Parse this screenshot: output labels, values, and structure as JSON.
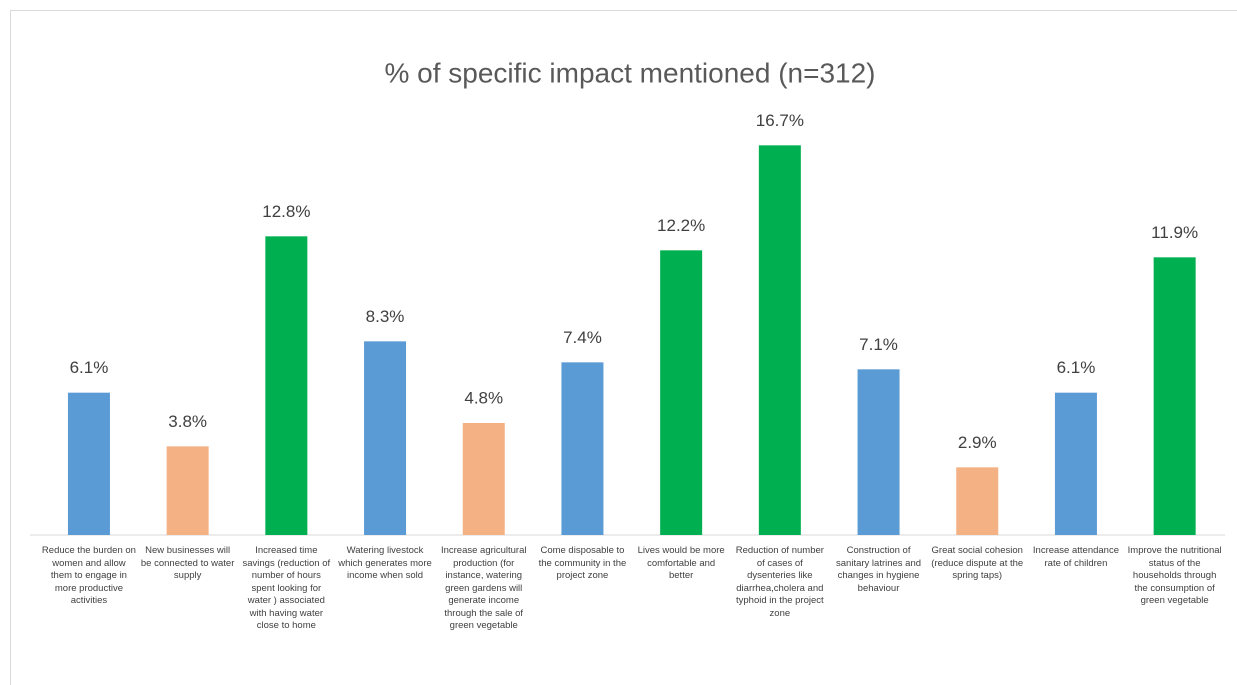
{
  "chart_data": {
    "type": "bar",
    "title": "% of  specific impact mentioned (n=312)",
    "categories": [
      "Reduce the burden on women and allow them to engage in more productive activities",
      "New businesses will be connected to water supply",
      "Increased time savings (reduction of number of hours spent looking for water ) associated with having water close to home",
      "Watering livestock which generates more income when sold",
      "Increase agricultural production (for instance, watering green gardens will generate income through the sale of green vegetable",
      "Come disposable to the community in the project zone",
      "Lives would be more comfortable and better",
      "Reduction of number of cases of dysenteries like diarrhea,cholera and typhoid in the project zone",
      "Construction of sanitary latrines and changes in hygiene behaviour",
      "Great social cohesion (reduce dispute at the spring taps)",
      "Increase attendance rate of children",
      "Improve the nutritional status of the households through the consumption of green vegetable"
    ],
    "values": [
      6.1,
      3.8,
      12.8,
      8.3,
      4.8,
      7.4,
      12.2,
      16.7,
      7.1,
      2.9,
      6.1,
      11.9
    ],
    "value_labels": [
      "6.1%",
      "3.8%",
      "12.8%",
      "8.3%",
      "4.8%",
      "7.4%",
      "12.2%",
      "16.7%",
      "7.1%",
      "2.9%",
      "6.1%",
      "11.9%"
    ],
    "colors": [
      "#5b9bd5",
      "#f4b183",
      "#00b050",
      "#5b9bd5",
      "#f4b183",
      "#5b9bd5",
      "#00b050",
      "#00b050",
      "#5b9bd5",
      "#f4b183",
      "#5b9bd5",
      "#00b050"
    ],
    "ylim": [
      0,
      18
    ]
  }
}
